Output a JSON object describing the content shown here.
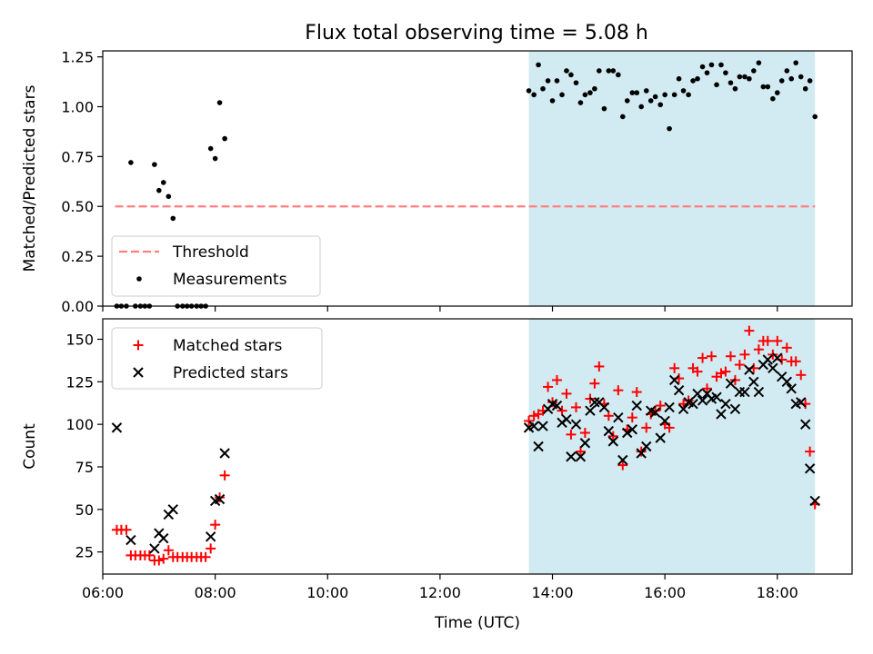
{
  "title": "Flux total observing time = 5.08 h",
  "colors": {
    "shade": "#add8e6",
    "threshold": "#ff7f7f",
    "matched": "#ff0000",
    "predicted": "#000000",
    "measure": "#000000"
  },
  "chart_data": [
    {
      "type": "scatter",
      "ylabel": "Matched/Predicted stars",
      "xlabel": "",
      "xlim": [
        6.0,
        19.33
      ],
      "ylim": [
        0,
        1.28
      ],
      "xticks": [
        {
          "v": 6,
          "label": ""
        },
        {
          "v": 8,
          "label": ""
        },
        {
          "v": 10,
          "label": ""
        },
        {
          "v": 12,
          "label": ""
        },
        {
          "v": 14,
          "label": ""
        },
        {
          "v": 16,
          "label": ""
        },
        {
          "v": 18,
          "label": ""
        }
      ],
      "yticks": [
        {
          "v": 0,
          "label": "0.00"
        },
        {
          "v": 0.25,
          "label": "0.25"
        },
        {
          "v": 0.5,
          "label": "0.50"
        },
        {
          "v": 0.75,
          "label": "0.75"
        },
        {
          "v": 1.0,
          "label": "1.00"
        },
        {
          "v": 1.25,
          "label": "1.25"
        }
      ],
      "shade": [
        13.58,
        18.67
      ],
      "threshold": {
        "value": 0.5,
        "from": 6.22,
        "to": 18.67
      },
      "legend": {
        "position": "lower-left",
        "entries": [
          "Threshold",
          "Measurements"
        ]
      },
      "series": [
        {
          "name": "Measurements",
          "points": [
            [
              6.25,
              0
            ],
            [
              6.33,
              0
            ],
            [
              6.42,
              0
            ],
            [
              6.5,
              0.72
            ],
            [
              6.58,
              0
            ],
            [
              6.67,
              0
            ],
            [
              6.75,
              0
            ],
            [
              6.83,
              0
            ],
            [
              6.92,
              0.71
            ],
            [
              7.0,
              0.58
            ],
            [
              7.08,
              0.62
            ],
            [
              7.17,
              0.55
            ],
            [
              7.25,
              0.44
            ],
            [
              7.33,
              0
            ],
            [
              7.42,
              0
            ],
            [
              7.5,
              0
            ],
            [
              7.58,
              0
            ],
            [
              7.67,
              0
            ],
            [
              7.75,
              0
            ],
            [
              7.83,
              0
            ],
            [
              7.92,
              0.79
            ],
            [
              8.0,
              0.74
            ],
            [
              8.08,
              1.02
            ],
            [
              8.17,
              0.84
            ],
            [
              13.58,
              1.08
            ],
            [
              13.67,
              1.06
            ],
            [
              13.75,
              1.21
            ],
            [
              13.83,
              1.09
            ],
            [
              13.92,
              1.13
            ],
            [
              14.0,
              1.03
            ],
            [
              14.08,
              1.13
            ],
            [
              14.17,
              1.06
            ],
            [
              14.25,
              1.18
            ],
            [
              14.33,
              1.16
            ],
            [
              14.42,
              1.12
            ],
            [
              14.5,
              1.02
            ],
            [
              14.58,
              1.06
            ],
            [
              14.67,
              1.07
            ],
            [
              14.75,
              1.09
            ],
            [
              14.83,
              1.18
            ],
            [
              14.92,
              0.99
            ],
            [
              15.0,
              1.18
            ],
            [
              15.08,
              1.18
            ],
            [
              15.17,
              1.16
            ],
            [
              15.25,
              0.95
            ],
            [
              15.33,
              1.03
            ],
            [
              15.42,
              1.07
            ],
            [
              15.5,
              1.07
            ],
            [
              15.58,
              1.0
            ],
            [
              15.67,
              1.08
            ],
            [
              15.75,
              1.03
            ],
            [
              15.83,
              1.05
            ],
            [
              15.92,
              1.01
            ],
            [
              16.0,
              1.06
            ],
            [
              16.08,
              0.89
            ],
            [
              16.17,
              1.06
            ],
            [
              16.25,
              1.14
            ],
            [
              16.33,
              1.08
            ],
            [
              16.42,
              1.06
            ],
            [
              16.5,
              1.13
            ],
            [
              16.58,
              1.14
            ],
            [
              16.67,
              1.2
            ],
            [
              16.75,
              1.17
            ],
            [
              16.83,
              1.21
            ],
            [
              16.92,
              1.11
            ],
            [
              17.0,
              1.21
            ],
            [
              17.08,
              1.17
            ],
            [
              17.17,
              1.12
            ],
            [
              17.25,
              1.09
            ],
            [
              17.33,
              1.15
            ],
            [
              17.42,
              1.15
            ],
            [
              17.5,
              1.14
            ],
            [
              17.58,
              1.18
            ],
            [
              17.67,
              1.22
            ],
            [
              17.75,
              1.1
            ],
            [
              17.83,
              1.1
            ],
            [
              17.92,
              1.04
            ],
            [
              18.0,
              1.07
            ],
            [
              18.08,
              1.13
            ],
            [
              18.17,
              1.18
            ],
            [
              18.25,
              1.14
            ],
            [
              18.33,
              1.22
            ],
            [
              18.42,
              1.15
            ],
            [
              18.5,
              1.09
            ],
            [
              18.58,
              1.13
            ],
            [
              18.67,
              0.95
            ]
          ]
        }
      ]
    },
    {
      "type": "scatter",
      "ylabel": "Count",
      "xlabel": "Time (UTC)",
      "xlim": [
        6.0,
        19.33
      ],
      "ylim": [
        12,
        162
      ],
      "xticks": [
        {
          "v": 6,
          "label": "06:00"
        },
        {
          "v": 8,
          "label": "08:00"
        },
        {
          "v": 10,
          "label": "10:00"
        },
        {
          "v": 12,
          "label": "12:00"
        },
        {
          "v": 14,
          "label": "14:00"
        },
        {
          "v": 16,
          "label": "16:00"
        },
        {
          "v": 18,
          "label": "18:00"
        }
      ],
      "yticks": [
        {
          "v": 25,
          "label": "25"
        },
        {
          "v": 50,
          "label": "50"
        },
        {
          "v": 75,
          "label": "75"
        },
        {
          "v": 100,
          "label": "100"
        },
        {
          "v": 125,
          "label": "125"
        },
        {
          "v": 150,
          "label": "150"
        }
      ],
      "shade": [
        13.58,
        18.67
      ],
      "legend": {
        "position": "upper-left",
        "entries": [
          "Matched stars",
          "Predicted stars"
        ]
      },
      "series": [
        {
          "name": "Matched stars",
          "marker": "plus",
          "points": [
            [
              6.25,
              38
            ],
            [
              6.33,
              38
            ],
            [
              6.42,
              38
            ],
            [
              6.5,
              23
            ],
            [
              6.58,
              23
            ],
            [
              6.67,
              23
            ],
            [
              6.75,
              23
            ],
            [
              6.83,
              23
            ],
            [
              6.92,
              20
            ],
            [
              7.0,
              20
            ],
            [
              7.08,
              21
            ],
            [
              7.17,
              26
            ],
            [
              7.25,
              22
            ],
            [
              7.33,
              22
            ],
            [
              7.42,
              22
            ],
            [
              7.5,
              22
            ],
            [
              7.58,
              22
            ],
            [
              7.67,
              22
            ],
            [
              7.75,
              22
            ],
            [
              7.83,
              22
            ],
            [
              7.92,
              27
            ],
            [
              8.0,
              41
            ],
            [
              8.08,
              57
            ],
            [
              8.17,
              70
            ],
            [
              13.58,
              102
            ],
            [
              13.67,
              105
            ],
            [
              13.75,
              106
            ],
            [
              13.83,
              108
            ],
            [
              13.92,
              122
            ],
            [
              14.0,
              113
            ],
            [
              14.08,
              126
            ],
            [
              14.17,
              108
            ],
            [
              14.25,
              118
            ],
            [
              14.33,
              94
            ],
            [
              14.42,
              110
            ],
            [
              14.5,
              84
            ],
            [
              14.58,
              95
            ],
            [
              14.67,
              115
            ],
            [
              14.75,
              124
            ],
            [
              14.83,
              134
            ],
            [
              14.92,
              112
            ],
            [
              15.0,
              105
            ],
            [
              15.08,
              93
            ],
            [
              15.17,
              120
            ],
            [
              15.25,
              76
            ],
            [
              15.33,
              97
            ],
            [
              15.42,
              104
            ],
            [
              15.5,
              119
            ],
            [
              15.58,
              84
            ],
            [
              15.67,
              98
            ],
            [
              15.75,
              106
            ],
            [
              15.83,
              108
            ],
            [
              15.92,
              111
            ],
            [
              16.0,
              100
            ],
            [
              16.08,
              98
            ],
            [
              16.17,
              133
            ],
            [
              16.25,
              127
            ],
            [
              16.33,
              112
            ],
            [
              16.42,
              114
            ],
            [
              16.5,
              133
            ],
            [
              16.58,
              131
            ],
            [
              16.67,
              139
            ],
            [
              16.75,
              121
            ],
            [
              16.83,
              140
            ],
            [
              16.92,
              128
            ],
            [
              17.0,
              130
            ],
            [
              17.08,
              131
            ],
            [
              17.17,
              140
            ],
            [
              17.25,
              126
            ],
            [
              17.33,
              135
            ],
            [
              17.42,
              141
            ],
            [
              17.5,
              155
            ],
            [
              17.58,
              133
            ],
            [
              17.67,
              144
            ],
            [
              17.75,
              149
            ],
            [
              17.83,
              149
            ],
            [
              17.92,
              141
            ],
            [
              18.0,
              149
            ],
            [
              18.08,
              138
            ],
            [
              18.17,
              145
            ],
            [
              18.25,
              137
            ],
            [
              18.33,
              137
            ],
            [
              18.42,
              129
            ],
            [
              18.5,
              112
            ],
            [
              18.58,
              84
            ],
            [
              18.67,
              53
            ]
          ]
        },
        {
          "name": "Predicted stars",
          "marker": "x",
          "points": [
            [
              6.25,
              98
            ],
            [
              6.5,
              32
            ],
            [
              6.92,
              27
            ],
            [
              7.0,
              36
            ],
            [
              7.08,
              33
            ],
            [
              7.17,
              47
            ],
            [
              7.25,
              50
            ],
            [
              7.92,
              34
            ],
            [
              8.0,
              55
            ],
            [
              8.08,
              56
            ],
            [
              8.17,
              83
            ],
            [
              13.58,
              98
            ],
            [
              13.67,
              99
            ],
            [
              13.75,
              87
            ],
            [
              13.83,
              99
            ],
            [
              13.92,
              109
            ],
            [
              14.0,
              112
            ],
            [
              14.08,
              111
            ],
            [
              14.17,
              101
            ],
            [
              14.25,
              103
            ],
            [
              14.33,
              81
            ],
            [
              14.42,
              100
            ],
            [
              14.5,
              81
            ],
            [
              14.58,
              89
            ],
            [
              14.67,
              108
            ],
            [
              14.75,
              113
            ],
            [
              14.83,
              113
            ],
            [
              14.92,
              110
            ],
            [
              15.0,
              96
            ],
            [
              15.08,
              90
            ],
            [
              15.17,
              104
            ],
            [
              15.25,
              79
            ],
            [
              15.33,
              95
            ],
            [
              15.42,
              97
            ],
            [
              15.5,
              111
            ],
            [
              15.58,
              83
            ],
            [
              15.67,
              87
            ],
            [
              15.75,
              108
            ],
            [
              15.83,
              107
            ],
            [
              15.92,
              92
            ],
            [
              16.0,
              102
            ],
            [
              16.08,
              110
            ],
            [
              16.17,
              126
            ],
            [
              16.25,
              120
            ],
            [
              16.33,
              109
            ],
            [
              16.42,
              113
            ],
            [
              16.5,
              112
            ],
            [
              16.58,
              118
            ],
            [
              16.67,
              114
            ],
            [
              16.75,
              118
            ],
            [
              16.83,
              115
            ],
            [
              16.92,
              116
            ],
            [
              17.0,
              106
            ],
            [
              17.08,
              112
            ],
            [
              17.17,
              124
            ],
            [
              17.25,
              109
            ],
            [
              17.33,
              119
            ],
            [
              17.42,
              119
            ],
            [
              17.5,
              132
            ],
            [
              17.58,
              125
            ],
            [
              17.67,
              119
            ],
            [
              17.75,
              135
            ],
            [
              17.83,
              138
            ],
            [
              17.92,
              133
            ],
            [
              18.0,
              139
            ],
            [
              18.08,
              128
            ],
            [
              18.17,
              125
            ],
            [
              18.25,
              121
            ],
            [
              18.33,
              112
            ],
            [
              18.42,
              113
            ],
            [
              18.5,
              100
            ],
            [
              18.58,
              74
            ],
            [
              18.67,
              55
            ]
          ]
        }
      ]
    }
  ]
}
